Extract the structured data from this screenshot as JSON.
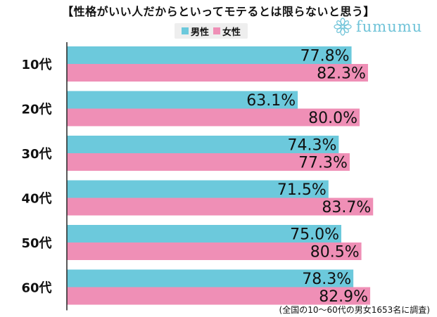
{
  "title": "【性格がいい人だからといってモテるとは限らないと思う】",
  "brand": {
    "name": "fumumu",
    "icon": "flower-logo-icon"
  },
  "colors": {
    "male": "#6cc9dc",
    "female": "#ef8fb6",
    "axis": "#222222"
  },
  "footnote": "(全国の10〜60代の男女1653名に調査)",
  "chart_data": {
    "type": "bar",
    "orientation": "horizontal",
    "categories": [
      "10代",
      "20代",
      "30代",
      "40代",
      "50代",
      "60代"
    ],
    "series": [
      {
        "name": "男性",
        "values": [
          77.8,
          63.1,
          74.3,
          71.5,
          75.0,
          78.3
        ],
        "labels": [
          "77.8%",
          "63.1%",
          "74.3%",
          "71.5%",
          "75.0%",
          "78.3%"
        ]
      },
      {
        "name": "女性",
        "values": [
          82.3,
          80.0,
          77.3,
          83.7,
          80.5,
          82.9
        ],
        "labels": [
          "82.3%",
          "80.0%",
          "77.3%",
          "83.7%",
          "80.5%",
          "82.9%"
        ]
      }
    ],
    "xlim": [
      0,
      100
    ],
    "legend": "top-center",
    "grid": false
  }
}
